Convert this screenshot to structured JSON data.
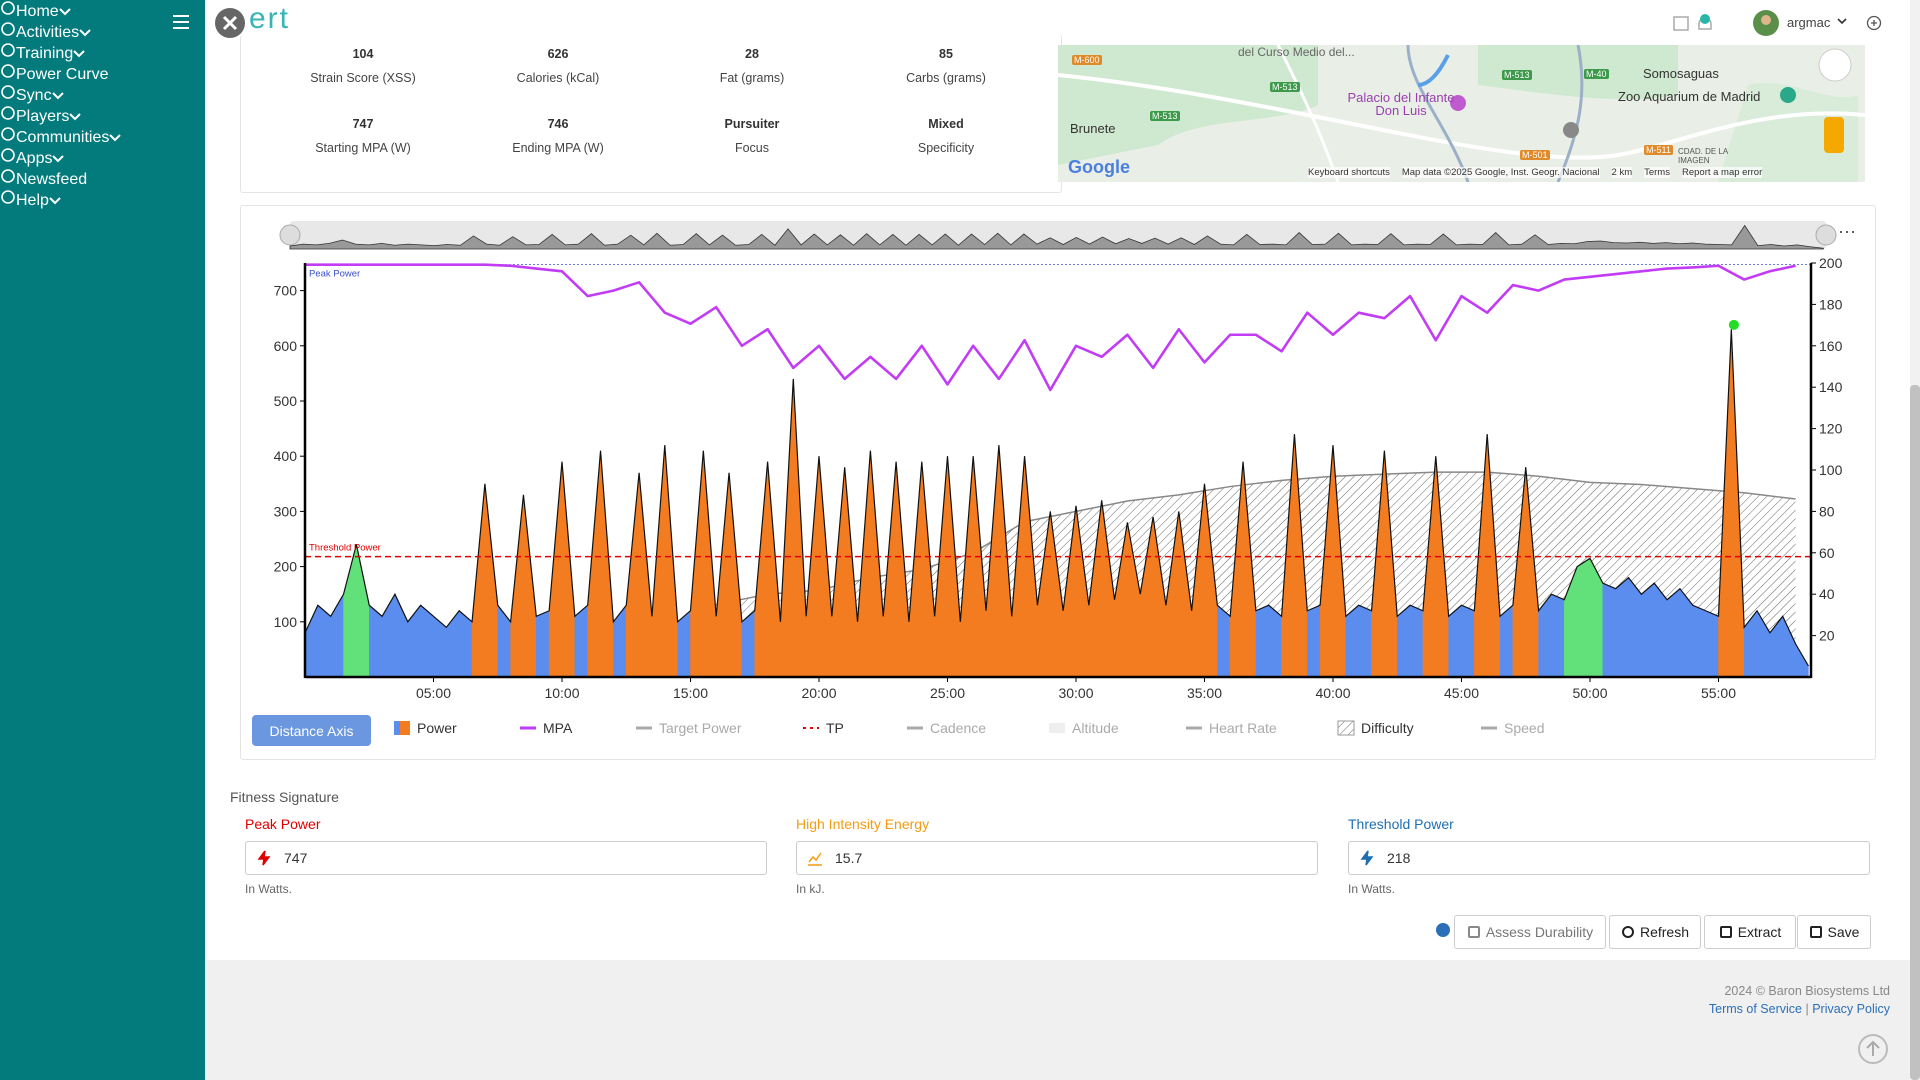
{
  "sidebar": {
    "items": [
      {
        "label": "Home",
        "submenu": true
      },
      {
        "label": "Activities",
        "submenu": true
      },
      {
        "label": "Training",
        "submenu": true
      },
      {
        "label": "Power Curve",
        "submenu": false
      },
      {
        "label": "Sync",
        "submenu": true
      },
      {
        "label": "Players",
        "submenu": true
      },
      {
        "label": "Communities",
        "submenu": true
      },
      {
        "label": "Apps",
        "submenu": true
      },
      {
        "label": "Newsfeed",
        "submenu": false
      },
      {
        "label": "Help",
        "submenu": true
      }
    ]
  },
  "header": {
    "logo": "ert",
    "user": "argmac"
  },
  "stats": [
    {
      "value": "104",
      "label": "Strain Score (XSS)"
    },
    {
      "value": "626",
      "label": "Calories (kCal)"
    },
    {
      "value": "28",
      "label": "Fat (grams)"
    },
    {
      "value": "85",
      "label": "Carbs (grams)"
    },
    {
      "value": "747",
      "label": "Starting MPA (W)"
    },
    {
      "value": "746",
      "label": "Ending MPA (W)"
    },
    {
      "value": "Pursuiter",
      "label": "Focus"
    },
    {
      "value": "Mixed",
      "label": "Specificity"
    }
  ],
  "map": {
    "places": [
      "Brunete",
      "Palacio del Infante Don Luis",
      "Somosaguas",
      "Zoo Aquarium de Madrid",
      "del Curso Medio del...",
      "CDAD. DE LA IMAGEN"
    ],
    "roads": [
      "M-600",
      "M-513",
      "M-513",
      "M-40",
      "M-513",
      "M-501",
      "M-511"
    ],
    "brand": "Google",
    "footer": [
      "Keyboard shortcuts",
      "Map data ©2025 Google, Inst. Geogr. Nacional",
      "2 km",
      "Terms",
      "Report a map error"
    ]
  },
  "chart_data": {
    "type": "line",
    "xlim": [
      0,
      58.6
    ],
    "ylim": [
      0,
      750
    ],
    "y2lim": [
      0,
      200
    ],
    "xticks": [
      {
        "value": 5,
        "label": "05:00"
      },
      {
        "value": 10,
        "label": "10:00"
      },
      {
        "value": 15,
        "label": "15:00"
      },
      {
        "value": 20,
        "label": "20:00"
      },
      {
        "value": 25,
        "label": "25:00"
      },
      {
        "value": 30,
        "label": "30:00"
      },
      {
        "value": 35,
        "label": "35:00"
      },
      {
        "value": 40,
        "label": "40:00"
      },
      {
        "value": 45,
        "label": "45:00"
      },
      {
        "value": 50,
        "label": "50:00"
      },
      {
        "value": 55,
        "label": "55:00"
      }
    ],
    "yticks": [
      100,
      200,
      300,
      400,
      500,
      600,
      700
    ],
    "y2ticks": [
      20,
      40,
      60,
      80,
      100,
      120,
      140,
      160,
      180,
      200
    ],
    "grid": false,
    "series": [
      {
        "name": "Power",
        "color": "#f47c20",
        "low_color": "#5b8def",
        "mid_color": "#62e07a",
        "x": [
          0,
          0.5,
          1,
          1.5,
          2,
          2.5,
          3,
          3.5,
          4,
          4.5,
          5,
          5.5,
          6,
          6.5,
          7,
          7.5,
          8,
          8.5,
          9,
          9.5,
          10,
          10.5,
          11,
          11.5,
          12,
          12.5,
          13,
          13.5,
          14,
          14.5,
          15,
          15.5,
          16,
          16.5,
          17,
          17.5,
          18,
          18.5,
          19,
          19.5,
          20,
          20.5,
          21,
          21.5,
          22,
          22.5,
          23,
          23.5,
          24,
          24.5,
          25,
          25.5,
          26,
          26.5,
          27,
          27.5,
          28,
          28.5,
          29,
          29.5,
          30,
          30.5,
          31,
          31.5,
          32,
          32.5,
          33,
          33.5,
          34,
          34.5,
          35,
          35.5,
          36,
          36.5,
          37,
          37.5,
          38,
          38.5,
          39,
          39.5,
          40,
          40.5,
          41,
          41.5,
          42,
          42.5,
          43,
          43.5,
          44,
          44.5,
          45,
          45.5,
          46,
          46.5,
          47,
          47.5,
          48,
          48.5,
          49,
          49.5,
          50,
          50.5,
          51,
          51.5,
          52,
          52.5,
          53,
          53.5,
          54,
          54.5,
          55,
          55.5,
          56,
          56.5,
          57,
          57.5,
          58,
          58.5
        ],
        "values": [
          80,
          130,
          110,
          150,
          240,
          130,
          110,
          150,
          100,
          130,
          110,
          90,
          120,
          100,
          350,
          130,
          100,
          330,
          110,
          120,
          390,
          110,
          130,
          410,
          100,
          130,
          370,
          110,
          420,
          100,
          120,
          410,
          110,
          370,
          100,
          120,
          390,
          100,
          540,
          110,
          400,
          110,
          380,
          100,
          410,
          110,
          390,
          100,
          390,
          110,
          400,
          100,
          400,
          120,
          420,
          110,
          400,
          130,
          300,
          120,
          310,
          130,
          320,
          140,
          280,
          150,
          290,
          130,
          300,
          120,
          350,
          130,
          110,
          390,
          120,
          130,
          110,
          440,
          120,
          130,
          420,
          110,
          130,
          120,
          410,
          110,
          130,
          120,
          400,
          110,
          130,
          120,
          440,
          110,
          130,
          380,
          120,
          150,
          140,
          200,
          215,
          170,
          160,
          180,
          150,
          170,
          140,
          160,
          130,
          120,
          110,
          630,
          90,
          120,
          80,
          110,
          60,
          20
        ]
      },
      {
        "name": "MPA",
        "color": "#c23cf5",
        "x": [
          0,
          1,
          2,
          3,
          4,
          5,
          6,
          7,
          8,
          9,
          10,
          11,
          12,
          13,
          14,
          15,
          16,
          17,
          18,
          19,
          20,
          21,
          22,
          23,
          24,
          25,
          26,
          27,
          28,
          29,
          30,
          31,
          32,
          33,
          34,
          35,
          36,
          37,
          38,
          39,
          40,
          41,
          42,
          43,
          44,
          45,
          46,
          47,
          48,
          49,
          50,
          51,
          52,
          53,
          54,
          55,
          56,
          57,
          58
        ],
        "values": [
          747,
          747,
          747,
          747,
          747,
          747,
          747,
          747,
          745,
          740,
          735,
          690,
          700,
          715,
          660,
          640,
          670,
          600,
          630,
          560,
          600,
          540,
          580,
          540,
          600,
          530,
          600,
          540,
          610,
          520,
          600,
          580,
          620,
          560,
          630,
          570,
          620,
          620,
          590,
          660,
          620,
          660,
          650,
          690,
          610,
          690,
          660,
          710,
          700,
          720,
          725,
          730,
          735,
          740,
          742,
          745,
          720,
          735,
          745
        ]
      },
      {
        "name": "Difficulty",
        "color": "#888888",
        "axis": "y2",
        "x": [
          0,
          2,
          4,
          6,
          8,
          10,
          12,
          14,
          16,
          18,
          20,
          22,
          24,
          26,
          28,
          30,
          32,
          34,
          36,
          38,
          40,
          42,
          44,
          46,
          48,
          50,
          52,
          54,
          56,
          58
        ],
        "values": [
          null,
          null,
          null,
          null,
          null,
          null,
          null,
          null,
          35,
          40,
          42,
          48,
          52,
          60,
          75,
          80,
          85,
          88,
          92,
          95,
          97,
          98,
          99,
          99,
          97,
          94,
          93,
          91,
          89,
          86
        ]
      }
    ],
    "reference_lines": [
      {
        "label": "Peak Power",
        "value": 747,
        "color": "#3a4fd0"
      },
      {
        "label": "Threshold Power",
        "value": 218,
        "color": "#e00000"
      }
    ],
    "marker": {
      "x": 55.6,
      "value": 638,
      "color": "#22dd22"
    },
    "axis_button": "Distance Axis",
    "legend": [
      {
        "name": "Power",
        "active": true
      },
      {
        "name": "MPA",
        "active": true
      },
      {
        "name": "Target Power",
        "active": false
      },
      {
        "name": "TP",
        "active": true
      },
      {
        "name": "Cadence",
        "active": false
      },
      {
        "name": "Altitude",
        "active": false
      },
      {
        "name": "Heart Rate",
        "active": false
      },
      {
        "name": "Difficulty",
        "active": true
      },
      {
        "name": "Speed",
        "active": false
      }
    ]
  },
  "fitness": {
    "title": "Fitness Signature",
    "fields": [
      {
        "label": "Peak Power",
        "value": "747",
        "unit": "In Watts."
      },
      {
        "label": "High Intensity Energy",
        "value": "15.7",
        "unit": "In kJ."
      },
      {
        "label": "Threshold Power",
        "value": "218",
        "unit": "In Watts."
      }
    ],
    "buttons": [
      "Assess Durability",
      "Refresh",
      "Extract",
      "Save"
    ]
  },
  "footer": {
    "copyright": "2024 © Baron Biosystems Ltd",
    "links": [
      "Terms of Service",
      "Privacy Policy"
    ],
    "separator": "|"
  }
}
